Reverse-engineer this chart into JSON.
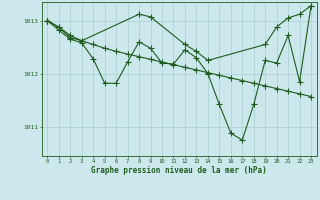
{
  "xlabel": "Graphe pression niveau de la mer (hPa)",
  "bg_color": "#cce8ec",
  "line_color": "#1e5c1e",
  "grid_color": "#aacfd4",
  "yticks": [
    1011,
    1012,
    1013
  ],
  "ylim": [
    1010.45,
    1013.35
  ],
  "xlim": [
    -0.5,
    23.5
  ],
  "series1_x": [
    0,
    1,
    2,
    3,
    4,
    5,
    6,
    7,
    8,
    9,
    10,
    11,
    12,
    13,
    14,
    15,
    16,
    17,
    18,
    19,
    20,
    21,
    22,
    23
  ],
  "series1_y": [
    1013.0,
    1012.88,
    1012.72,
    1012.62,
    1012.55,
    1012.48,
    1012.42,
    1012.37,
    1012.32,
    1012.27,
    1012.22,
    1012.17,
    1012.12,
    1012.07,
    1012.02,
    1011.97,
    1011.92,
    1011.87,
    1011.82,
    1011.77,
    1011.72,
    1011.67,
    1011.62,
    1011.57
  ],
  "series2_x": [
    0,
    1,
    2,
    3,
    8,
    9,
    12,
    13,
    14,
    19,
    20,
    21,
    22,
    23
  ],
  "series2_y": [
    1013.0,
    1012.87,
    1012.68,
    1012.62,
    1013.12,
    1013.07,
    1012.55,
    1012.42,
    1012.25,
    1012.55,
    1012.88,
    1013.05,
    1013.12,
    1013.28
  ],
  "series3_x": [
    0,
    1,
    2,
    3,
    4,
    5,
    6,
    7,
    8,
    9,
    10,
    11,
    12,
    13,
    14,
    15,
    16,
    17,
    18,
    19,
    20,
    21,
    22,
    23
  ],
  "series3_y": [
    1013.0,
    1012.82,
    1012.65,
    1012.58,
    1012.28,
    1011.82,
    1011.82,
    1012.22,
    1012.6,
    1012.48,
    1012.2,
    1012.18,
    1012.45,
    1012.3,
    1012.0,
    1011.42,
    1010.88,
    1010.75,
    1011.42,
    1012.25,
    1012.2,
    1012.72,
    1011.85,
    1013.28
  ]
}
